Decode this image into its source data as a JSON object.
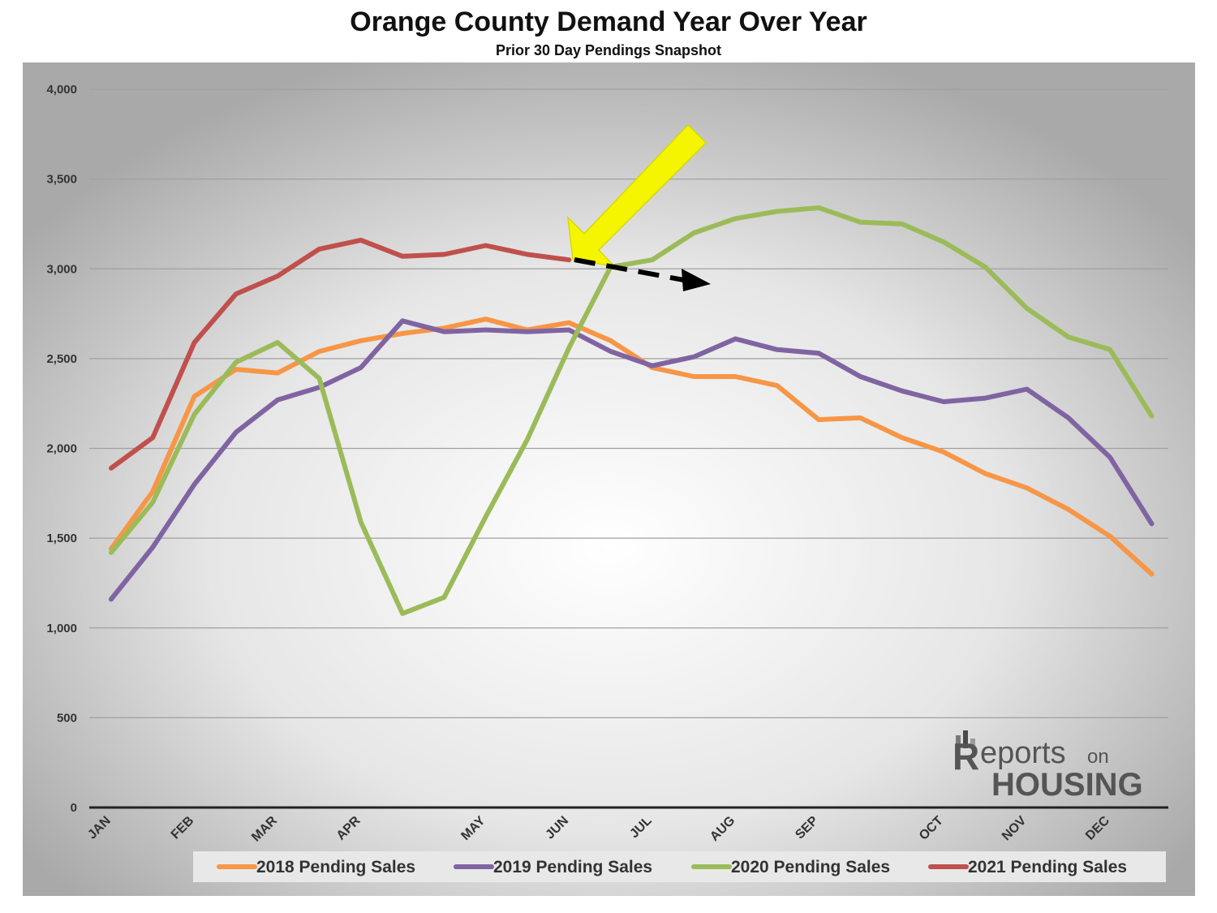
{
  "chart_data": {
    "type": "line",
    "title": "Orange County Demand Year Over Year",
    "subtitle": "Prior 30 Day Pendings Snapshot",
    "xlabel": "",
    "ylabel": "",
    "ylim": [
      0,
      4000
    ],
    "y_ticks": [
      "0",
      "500",
      "1,000",
      "1,500",
      "2,000",
      "2,500",
      "3,000",
      "3,500",
      "4,000"
    ],
    "y_tick_values": [
      0,
      500,
      1000,
      1500,
      2000,
      2500,
      3000,
      3500,
      4000
    ],
    "x_tick_labels": [
      "JAN",
      "FEB",
      "MAR",
      "APR",
      "MAY",
      "JUN",
      "JUL",
      "AUG",
      "SEP",
      "OCT",
      "NOV",
      "DEC"
    ],
    "x_tick_positions": [
      0,
      2,
      4,
      6,
      9,
      11,
      13,
      15,
      17,
      20,
      22,
      24
    ],
    "num_points": 26,
    "grid": true,
    "legend_position": "bottom",
    "series": [
      {
        "name": "2018 Pending Sales",
        "color": "#f79646",
        "values": [
          1440,
          1760,
          2290,
          2440,
          2420,
          2540,
          2600,
          2640,
          2670,
          2720,
          2660,
          2700,
          2600,
          2450,
          2400,
          2400,
          2350,
          2160,
          2170,
          2060,
          1980,
          1860,
          1780,
          1660,
          1510,
          1300
        ]
      },
      {
        "name": "2019 Pending Sales",
        "color": "#8064a2",
        "values": [
          1160,
          1450,
          1800,
          2090,
          2270,
          2340,
          2450,
          2710,
          2650,
          2660,
          2650,
          2660,
          2540,
          2460,
          2510,
          2610,
          2550,
          2530,
          2400,
          2320,
          2260,
          2280,
          2330,
          2170,
          1950,
          1580
        ]
      },
      {
        "name": "2020 Pending Sales",
        "color": "#9bbb59",
        "values": [
          1420,
          1700,
          2190,
          2480,
          2590,
          2390,
          1590,
          1080,
          1170,
          1620,
          2050,
          2560,
          3010,
          3050,
          3200,
          3280,
          3320,
          3340,
          3260,
          3250,
          3150,
          3010,
          2780,
          2620,
          2550,
          2180
        ]
      },
      {
        "name": "2021 Pending Sales",
        "color": "#c0504d",
        "values": [
          1890,
          2060,
          2590,
          2860,
          2960,
          3110,
          3160,
          3070,
          3080,
          3130,
          3080,
          3050
        ]
      }
    ],
    "annotations": [
      "yellow arrow pointing to latest 2021 value",
      "black dashed arrow showing downward trend"
    ]
  },
  "logo": {
    "line1": "eports",
    "line1_suffix": "on",
    "line2": "HOUSING",
    "initial": "R"
  }
}
